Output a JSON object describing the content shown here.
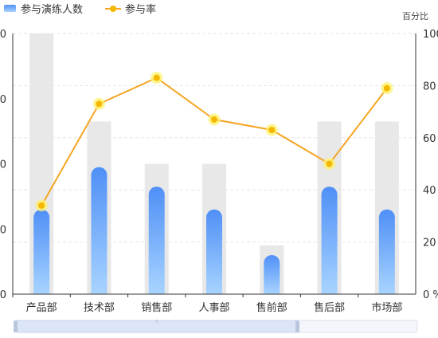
{
  "chart_data": {
    "type": "bar",
    "categories": [
      "产品部",
      "技术部",
      "销售部",
      "人事部",
      "售前部",
      "售后部",
      "市场部"
    ],
    "series": [
      {
        "name": "参与演练人数",
        "type": "bar",
        "values": [
          26,
          39,
          33,
          26,
          12,
          33,
          26
        ]
      },
      {
        "name": "参与率",
        "type": "line",
        "axis": "right",
        "values": [
          34,
          73,
          83,
          67,
          63,
          50,
          79
        ]
      }
    ],
    "background_bars": [
      80,
      53,
      40,
      40,
      15,
      53,
      53
    ],
    "y_left": {
      "ylim": [
        0,
        80
      ],
      "ticks": [
        "0",
        "0",
        "0",
        "0",
        "0"
      ]
    },
    "y_right": {
      "label": "百分比",
      "ylim": [
        0,
        100
      ],
      "ticks": [
        "0 %",
        "20",
        "40",
        "60",
        "80",
        "100"
      ]
    },
    "legend": {
      "placement": "top-left",
      "items": [
        "参与演练人数",
        "参与率"
      ]
    },
    "grid": true,
    "has_zoom_slider": true,
    "colors": {
      "bar_top": "#4f8ff7",
      "bar_bottom": "#a8d4ff",
      "bar_background": "#e8e8e8",
      "line": "#f5a623",
      "marker_fill": "#f5b800",
      "marker_glow": "#fff26b",
      "axis": "#333333",
      "grid": "#e6e6e6",
      "text": "#333333",
      "slider_fill": "#dbe5f7",
      "slider_border": "#c8d3e6"
    }
  }
}
